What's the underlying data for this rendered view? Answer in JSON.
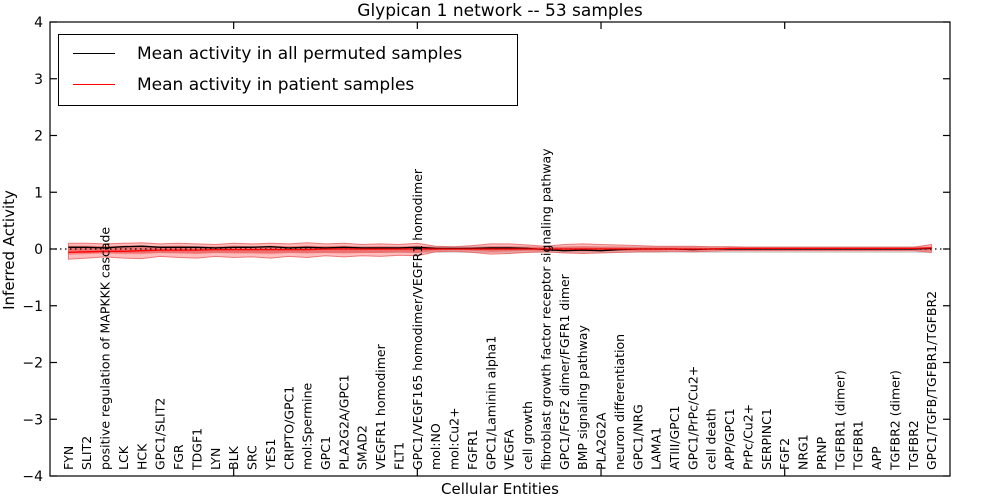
{
  "title": "Glypican 1 network -- 53 samples",
  "legend": {
    "items": [
      {
        "label": "Mean activity in all permuted samples",
        "color": "#000000"
      },
      {
        "label": "Mean activity in patient samples",
        "color": "#ff0000"
      }
    ]
  },
  "chart_data": {
    "type": "line",
    "title": "Glypican 1 network -- 53 samples",
    "xlabel": "Cellular Entities",
    "ylabel": "Inferred Activity",
    "ylim": [
      -4,
      4
    ],
    "yticks": [
      -4,
      -3,
      -2,
      -1,
      0,
      1,
      2,
      3,
      4
    ],
    "xtick_positions": [
      9,
      19,
      29,
      39
    ],
    "grid": false,
    "legend_position": "upper left",
    "zero_line": {
      "style": "dotted",
      "color": "#000000",
      "y": 0
    },
    "categories": [
      "FYN",
      "SLIT2",
      "positive regulation of MAPKKK cascade",
      "LCK",
      "HCK",
      "GPC1/SLIT2",
      "FGR",
      "TDGF1",
      "LYN",
      "BLK",
      "SRC",
      "YES1",
      "CRIPTO/GPC1",
      "mol:Spermine",
      "GPC1",
      "PLA2G2A/GPC1",
      "SMAD2",
      "VEGFR1 homodimer",
      "FLT1",
      "GPC1/VEGF165 homodimer/VEGFR1 homodimer",
      "mol:NO",
      "mol:Cu2+",
      "FGFR1",
      "GPC1/Laminin alpha1",
      "VEGFA",
      "cell growth",
      "fibroblast growth factor receptor signaling pathway",
      "GPC1/FGF2 dimer/FGFR1 dimer",
      "BMP signaling pathway",
      "PLA2G2A",
      "neuron differentiation",
      "GPC1/NRG",
      "LAMA1",
      "ATIII/GPC1",
      "GPC1/PrPc/Cu2+",
      "cell death",
      "APP/GPC1",
      "PrPc/Cu2+",
      "SERPINC1",
      "FGF2",
      "NRG1",
      "PRNP",
      "TGFBR1 (dimer)",
      "TGFBR1",
      "APP",
      "TGFBR2 (dimer)",
      "TGFBR2",
      "GPC1/TGFB/TGFBR1/TGFBR2"
    ],
    "series": [
      {
        "name": "Mean activity in all permuted samples",
        "color": "#000000",
        "values": [
          0.03,
          0.03,
          0.02,
          0.04,
          0.05,
          0.03,
          0.03,
          0.03,
          0.02,
          0.03,
          0.03,
          0.04,
          0.02,
          0.03,
          0.02,
          0.03,
          0.02,
          0.02,
          0.02,
          0.03,
          0.01,
          0.01,
          0.01,
          0.02,
          0.02,
          0.01,
          -0.01,
          -0.03,
          -0.02,
          -0.03,
          -0.01,
          0.0,
          0.0,
          0.0,
          -0.01,
          0.0,
          0.0,
          0.0,
          0.0,
          0.0,
          0.0,
          0.0,
          0.0,
          0.0,
          0.0,
          0.0,
          0.0,
          0.01
        ]
      },
      {
        "name": "Mean activity in patient samples",
        "color": "#ff0000",
        "values": [
          -0.06,
          -0.05,
          -0.04,
          -0.04,
          -0.03,
          -0.02,
          -0.02,
          -0.02,
          -0.01,
          -0.01,
          -0.01,
          -0.01,
          -0.01,
          -0.01,
          0.0,
          0.0,
          0.0,
          0.0,
          0.0,
          0.0,
          0.0,
          0.0,
          0.0,
          0.0,
          0.0,
          0.0,
          0.0,
          0.0,
          0.0,
          0.0,
          0.0,
          0.0,
          0.0,
          0.0,
          0.0,
          0.0,
          0.01,
          0.01,
          0.01,
          0.01,
          0.01,
          0.01,
          0.01,
          0.01,
          0.01,
          0.01,
          0.01,
          0.02
        ]
      }
    ],
    "bands": {
      "patient_outer": {
        "color": "#ff0000",
        "opacity": 0.26,
        "upper": [
          0.1,
          0.1,
          0.09,
          0.1,
          0.11,
          0.09,
          0.1,
          0.09,
          0.08,
          0.1,
          0.09,
          0.1,
          0.09,
          0.11,
          0.09,
          0.1,
          0.08,
          0.09,
          0.08,
          0.1,
          0.05,
          0.04,
          0.06,
          0.09,
          0.09,
          0.07,
          0.05,
          0.08,
          0.09,
          0.08,
          0.07,
          0.06,
          0.05,
          0.05,
          0.05,
          0.04,
          0.04,
          0.03,
          0.03,
          0.03,
          0.03,
          0.03,
          0.03,
          0.03,
          0.03,
          0.03,
          0.03,
          0.08
        ],
        "lower": [
          -0.18,
          -0.16,
          -0.14,
          -0.16,
          -0.17,
          -0.13,
          -0.15,
          -0.16,
          -0.13,
          -0.15,
          -0.14,
          -0.16,
          -0.13,
          -0.15,
          -0.12,
          -0.14,
          -0.12,
          -0.13,
          -0.11,
          -0.12,
          -0.05,
          -0.04,
          -0.06,
          -0.09,
          -0.08,
          -0.06,
          -0.05,
          -0.07,
          -0.08,
          -0.07,
          -0.06,
          -0.05,
          -0.05,
          -0.04,
          -0.05,
          -0.04,
          -0.03,
          -0.03,
          -0.03,
          -0.03,
          -0.03,
          -0.03,
          -0.03,
          -0.03,
          -0.03,
          -0.03,
          -0.03,
          -0.06
        ]
      },
      "patient_inner": {
        "color": "#ff0000",
        "opacity": 0.3,
        "upper": [
          0.06,
          0.06,
          0.05,
          0.06,
          0.06,
          0.05,
          0.06,
          0.05,
          0.04,
          0.06,
          0.05,
          0.06,
          0.05,
          0.06,
          0.05,
          0.06,
          0.04,
          0.05,
          0.04,
          0.06,
          0.03,
          0.02,
          0.03,
          0.05,
          0.05,
          0.04,
          0.03,
          0.04,
          0.05,
          0.04,
          0.04,
          0.03,
          0.03,
          0.03,
          0.03,
          0.02,
          0.02,
          0.02,
          0.02,
          0.02,
          0.02,
          0.02,
          0.02,
          0.02,
          0.02,
          0.02,
          0.02,
          0.04
        ],
        "lower": [
          -0.1,
          -0.09,
          -0.08,
          -0.09,
          -0.09,
          -0.07,
          -0.08,
          -0.09,
          -0.07,
          -0.08,
          -0.08,
          -0.09,
          -0.07,
          -0.08,
          -0.07,
          -0.08,
          -0.07,
          -0.07,
          -0.06,
          -0.07,
          -0.03,
          -0.02,
          -0.03,
          -0.05,
          -0.04,
          -0.03,
          -0.03,
          -0.04,
          -0.04,
          -0.04,
          -0.03,
          -0.03,
          -0.03,
          -0.02,
          -0.03,
          -0.02,
          -0.02,
          -0.02,
          -0.02,
          -0.02,
          -0.02,
          -0.02,
          -0.02,
          -0.02,
          -0.02,
          -0.02,
          -0.02,
          -0.03
        ]
      },
      "permuted": {
        "color": "#999999",
        "opacity": 0.35,
        "upper": 0.05,
        "lower": -0.07
      }
    }
  }
}
